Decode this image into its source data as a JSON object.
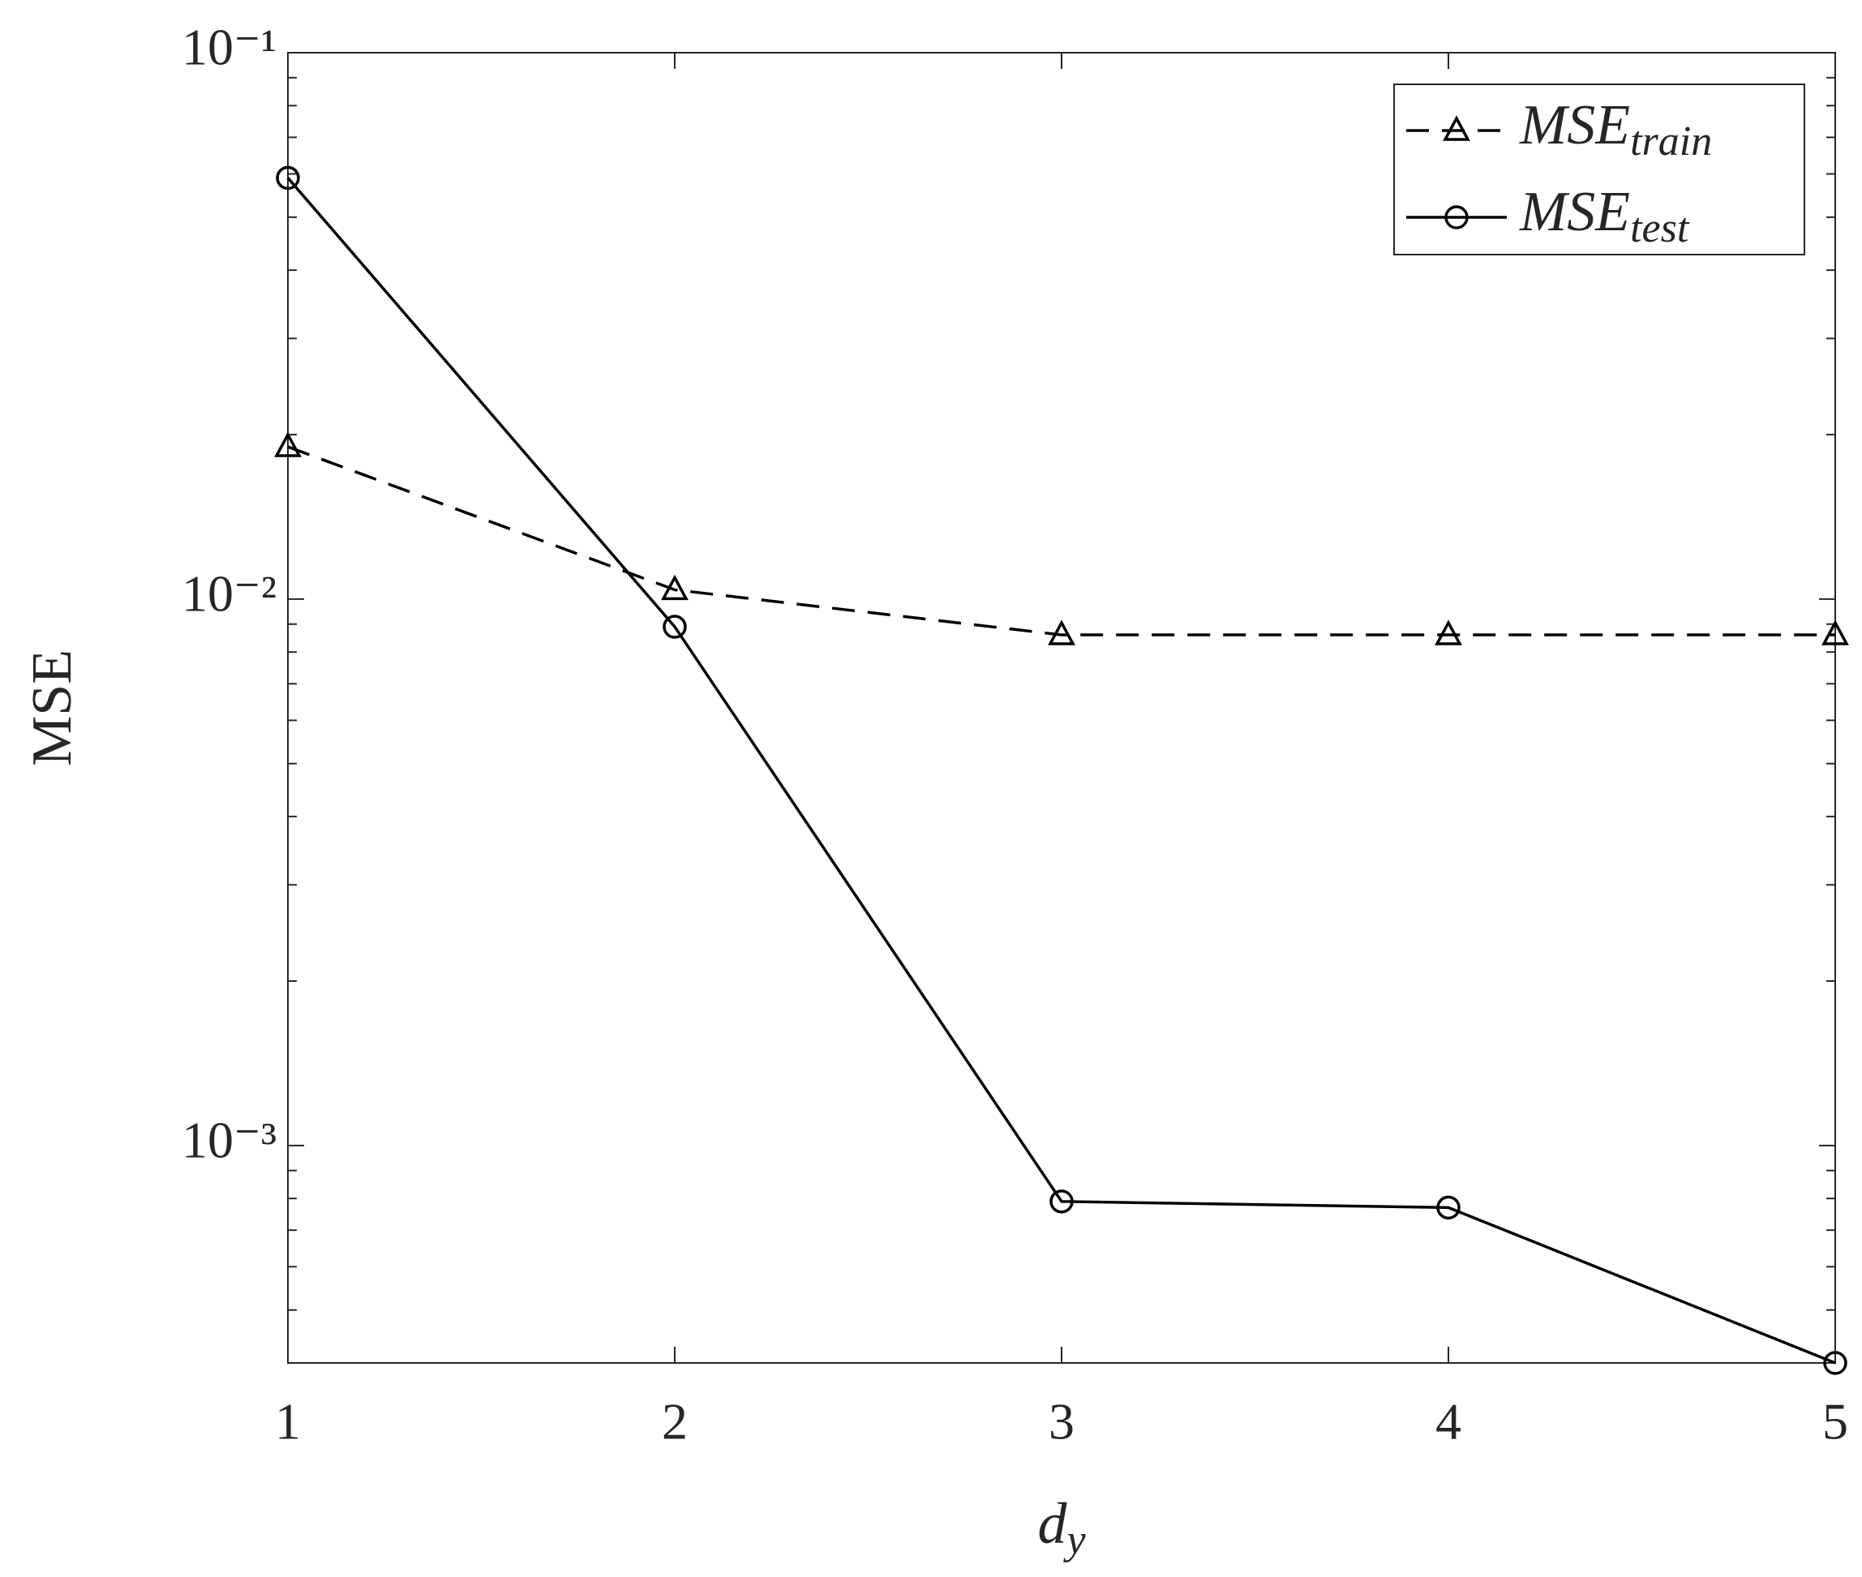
{
  "chart_data": {
    "type": "line",
    "y_label": "MSE",
    "x_label": "d",
    "x_label_subscript": "y",
    "x": [
      1,
      2,
      3,
      4,
      5
    ],
    "xlim": [
      1,
      5
    ],
    "xticks": [
      1,
      2,
      3,
      4,
      5
    ],
    "ylim": [
      0.0004,
      0.1
    ],
    "log_y": true,
    "yticks": [
      {
        "value": 0.001,
        "label": "10⁻³"
      },
      {
        "value": 0.01,
        "label": "10⁻²"
      },
      {
        "value": 0.1,
        "label": "10⁻¹"
      }
    ],
    "yminorticks": [
      0.0005,
      0.0006,
      0.0007,
      0.0008,
      0.0009,
      0.002,
      0.003,
      0.004,
      0.005,
      0.006,
      0.007,
      0.008,
      0.009,
      0.02,
      0.03,
      0.04,
      0.05,
      0.06,
      0.07,
      0.08,
      0.09
    ],
    "grid": false,
    "legend": "upper right",
    "series": [
      {
        "name": "MSE",
        "subscript": "train",
        "color": "#000000",
        "dash": true,
        "marker": "triangle",
        "values": [
          0.019,
          0.0104,
          0.0086,
          0.0086,
          0.0086
        ]
      },
      {
        "name": "MSE",
        "subscript": "test",
        "color": "#000000",
        "dash": false,
        "marker": "circle",
        "values": [
          0.059,
          0.0089,
          0.00079,
          0.00077,
          0.0004
        ]
      }
    ]
  }
}
